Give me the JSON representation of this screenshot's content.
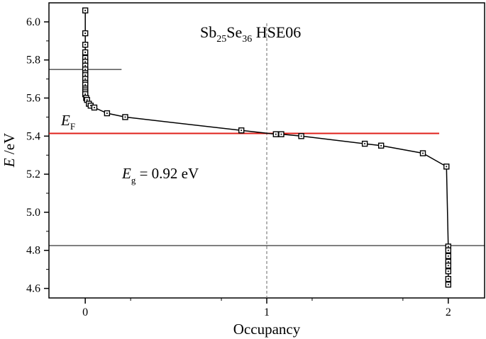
{
  "chart_data": {
    "type": "scatter",
    "title": "",
    "xlabel": "Occupancy",
    "ylabel_var": "E",
    "ylabel_unit": " /eV",
    "xlim": [
      -0.2,
      2.2
    ],
    "ylim": [
      4.55,
      6.1
    ],
    "x_ticks": [
      0,
      1,
      2
    ],
    "y_ticks": [
      4.6,
      4.8,
      5.0,
      5.2,
      5.4,
      5.6,
      5.8,
      6.0
    ],
    "x_tick_labels": [
      "0",
      "1",
      "2"
    ],
    "y_tick_labels": [
      "4.6",
      "4.8",
      "5.0",
      "5.2",
      "5.4",
      "5.6",
      "5.8",
      "6.0"
    ],
    "grid": false,
    "series": [
      {
        "color": "#000000",
        "marker": "square-with-dot",
        "x": [
          0,
          0,
          0,
          0,
          0,
          0,
          0,
          0,
          0,
          0,
          0,
          0,
          0,
          0,
          0,
          0,
          0,
          0.005,
          0.01,
          0.02,
          0.03,
          0.05,
          0.12,
          0.22,
          0.86,
          1.05,
          1.08,
          1.19,
          1.54,
          1.63,
          1.86,
          1.99,
          2.0,
          2.0,
          2.0,
          2.0,
          2.0,
          2.0,
          2.0,
          2.0
        ],
        "y": [
          6.06,
          5.94,
          5.88,
          5.84,
          5.81,
          5.79,
          5.77,
          5.75,
          5.73,
          5.72,
          5.7,
          5.68,
          5.67,
          5.65,
          5.64,
          5.63,
          5.62,
          5.6,
          5.59,
          5.57,
          5.56,
          5.55,
          5.52,
          5.5,
          5.43,
          5.41,
          5.41,
          5.4,
          5.36,
          5.35,
          5.31,
          5.24,
          4.82,
          4.8,
          4.77,
          4.74,
          4.72,
          4.69,
          4.65,
          4.62
        ]
      }
    ],
    "annotations": {
      "compound_main1": "Sb",
      "compound_sub1": "25",
      "compound_main2": "Se",
      "compound_sub2": "36",
      "compound_rest": " HSE06",
      "ef_var": "E",
      "ef_sub": "F",
      "eg_var": "E",
      "eg_sub": "g",
      "eg_value": " = 0.92 eV"
    },
    "reference_lines": {
      "fermi_level": 5.414,
      "fermi_color": "#e0201b",
      "vbm_level": 4.825,
      "short_line_level": 5.75,
      "short_line_x": [
        -0.2,
        0.2
      ],
      "half_occupancy_x": 1.0
    }
  }
}
